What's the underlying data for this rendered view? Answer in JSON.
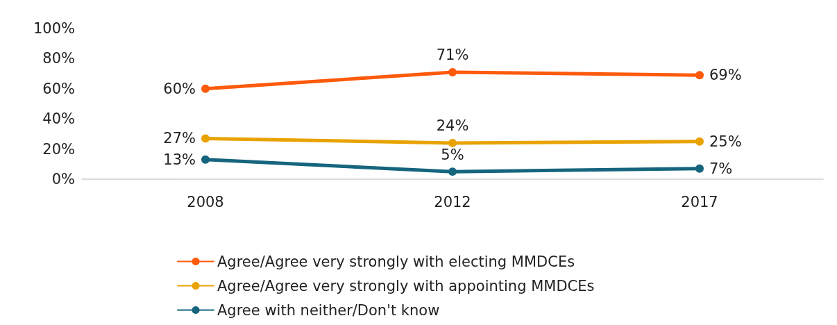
{
  "chart_data": {
    "type": "line",
    "categories": [
      "2008",
      "2012",
      "2017"
    ],
    "series": [
      {
        "name": "Agree/Agree very strongly with electing MMDCEs",
        "color": "#fe5a0c",
        "values": [
          60,
          71,
          69
        ],
        "value_labels": [
          "60%",
          "71%",
          "69%"
        ]
      },
      {
        "name": "Agree/Agree very strongly with appointing MMDCEs",
        "color": "#e8a302",
        "values": [
          27,
          24,
          25
        ],
        "value_labels": [
          "27%",
          "24%",
          "25%"
        ]
      },
      {
        "name": "Agree with neither/Don't know",
        "color": "#16657e",
        "values": [
          13,
          5,
          7
        ],
        "value_labels": [
          "13%",
          "5%",
          "7%"
        ]
      }
    ],
    "ylim": [
      0,
      100
    ],
    "yticks": [
      {
        "value": 0,
        "label": "0%"
      },
      {
        "value": 20,
        "label": "20%"
      },
      {
        "value": 40,
        "label": "40%"
      },
      {
        "value": 60,
        "label": "60%"
      },
      {
        "value": 80,
        "label": "80%"
      },
      {
        "value": 100,
        "label": "100%"
      }
    ],
    "grid": false,
    "legend": "bottom",
    "marker": "circle",
    "line_style": "solid"
  }
}
